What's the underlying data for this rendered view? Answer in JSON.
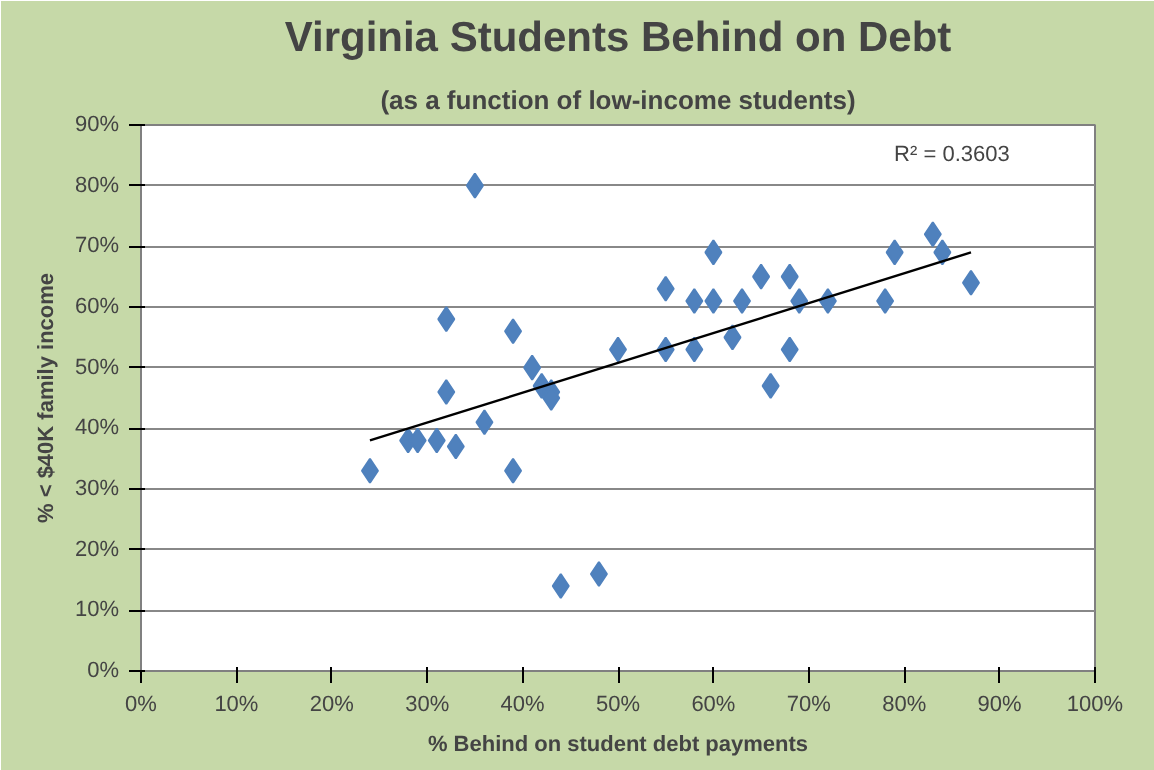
{
  "chart_data": {
    "type": "scatter",
    "title": "Virginia Students Behind on Debt",
    "subtitle": "(as a function of low-income students)",
    "xlabel": "% Behind on student debt payments",
    "ylabel": "% < $40K family income",
    "series": [
      {
        "color": "#4f81bd",
        "marker": "diamond",
        "x": [
          24,
          28,
          29,
          31,
          32,
          32,
          33,
          35,
          36,
          39,
          39,
          41,
          42,
          43,
          43,
          44,
          48,
          50,
          55,
          55,
          58,
          58,
          60,
          60,
          62,
          63,
          65,
          66,
          68,
          68,
          69,
          72,
          78,
          79,
          83,
          84,
          87
        ],
        "values": [
          33,
          38,
          38,
          38,
          46,
          58,
          37,
          80,
          41,
          56,
          33,
          50,
          47,
          46,
          45,
          14,
          16,
          53,
          63,
          53,
          61,
          53,
          69,
          61,
          55,
          61,
          65,
          47,
          65,
          53,
          61,
          61,
          61,
          69,
          72,
          69,
          64
        ]
      },
      {
        "type": "line",
        "color": "#000000",
        "marker": "none",
        "x": [
          24,
          87
        ],
        "values": [
          38,
          69
        ]
      }
    ],
    "annotations": [
      "R² = 0.3603"
    ],
    "xlim": [
      0,
      100
    ],
    "ylim": [
      0,
      90
    ],
    "xticks": [
      {
        "value": 0,
        "label": "0%"
      },
      {
        "value": 10,
        "label": "10%"
      },
      {
        "value": 20,
        "label": "20%"
      },
      {
        "value": 30,
        "label": "30%"
      },
      {
        "value": 40,
        "label": "40%"
      },
      {
        "value": 50,
        "label": "50%"
      },
      {
        "value": 60,
        "label": "60%"
      },
      {
        "value": 70,
        "label": "70%"
      },
      {
        "value": 80,
        "label": "80%"
      },
      {
        "value": 90,
        "label": "90%"
      },
      {
        "value": 100,
        "label": "100%"
      }
    ],
    "yticks": [
      {
        "value": 0,
        "label": "0%"
      },
      {
        "value": 10,
        "label": "10%"
      },
      {
        "value": 20,
        "label": "20%"
      },
      {
        "value": 30,
        "label": "30%"
      },
      {
        "value": 40,
        "label": "40%"
      },
      {
        "value": 50,
        "label": "50%"
      },
      {
        "value": 60,
        "label": "60%"
      },
      {
        "value": 70,
        "label": "70%"
      },
      {
        "value": 80,
        "label": "80%"
      },
      {
        "value": 90,
        "label": "90%"
      }
    ],
    "grid": "y"
  }
}
